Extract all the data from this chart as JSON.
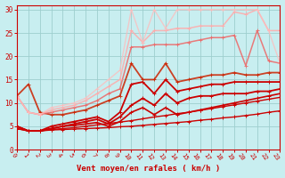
{
  "xlabel": "Vent moyen/en rafales ( km/h )",
  "xlim": [
    0,
    23
  ],
  "ylim": [
    0,
    31
  ],
  "yticks": [
    0,
    5,
    10,
    15,
    20,
    25,
    30
  ],
  "xticks": [
    0,
    1,
    2,
    3,
    4,
    5,
    6,
    7,
    8,
    9,
    10,
    11,
    12,
    13,
    14,
    15,
    16,
    17,
    18,
    19,
    20,
    21,
    22,
    23
  ],
  "bg_color": "#c8eef0",
  "grid_color": "#9ecece",
  "lines": [
    {
      "y": [
        4.5,
        4.0,
        4.0,
        4.2,
        4.3,
        4.4,
        4.5,
        4.6,
        4.7,
        4.9,
        5.0,
        5.2,
        5.4,
        5.6,
        5.8,
        6.0,
        6.3,
        6.5,
        6.8,
        7.0,
        7.3,
        7.6,
        8.0,
        8.3
      ],
      "color": "#cc0000",
      "lw": 1.0,
      "alpha": 1.0
    },
    {
      "y": [
        4.5,
        4.0,
        4.0,
        4.3,
        4.5,
        4.7,
        5.0,
        5.3,
        5.6,
        5.9,
        6.2,
        6.6,
        7.0,
        7.3,
        7.7,
        8.0,
        8.4,
        8.8,
        9.2,
        9.6,
        10.0,
        10.4,
        10.8,
        11.2
      ],
      "color": "#cc0000",
      "lw": 1.0,
      "alpha": 1.0
    },
    {
      "y": [
        5.0,
        4.0,
        4.0,
        4.5,
        5.0,
        5.2,
        5.5,
        5.8,
        5.0,
        6.0,
        8.0,
        9.0,
        7.5,
        9.0,
        7.5,
        8.0,
        8.5,
        9.0,
        9.5,
        10.0,
        10.5,
        11.0,
        11.5,
        12.0
      ],
      "color": "#cc0000",
      "lw": 1.2,
      "alpha": 1.0
    },
    {
      "y": [
        5.0,
        4.0,
        4.0,
        4.5,
        5.0,
        5.5,
        6.0,
        6.5,
        5.5,
        7.0,
        9.5,
        11.0,
        9.5,
        12.0,
        10.0,
        11.0,
        11.5,
        11.5,
        12.0,
        12.0,
        12.0,
        12.5,
        12.5,
        13.0
      ],
      "color": "#cc0000",
      "lw": 1.3,
      "alpha": 1.0
    },
    {
      "y": [
        5.0,
        4.0,
        4.0,
        5.0,
        5.5,
        6.0,
        6.5,
        7.0,
        6.0,
        8.0,
        14.0,
        14.5,
        12.0,
        15.0,
        12.5,
        13.0,
        13.5,
        14.0,
        14.0,
        14.5,
        14.5,
        14.5,
        14.5,
        14.5
      ],
      "color": "#cc0000",
      "lw": 1.3,
      "alpha": 1.0
    },
    {
      "y": [
        11.5,
        14.0,
        8.0,
        7.5,
        7.5,
        8.0,
        8.5,
        9.5,
        10.5,
        11.5,
        18.5,
        15.0,
        15.0,
        18.5,
        14.5,
        15.0,
        15.5,
        16.0,
        16.0,
        16.5,
        16.0,
        16.0,
        16.5,
        16.5
      ],
      "color": "#cc2200",
      "lw": 1.3,
      "alpha": 0.85
    },
    {
      "y": [
        11.5,
        8.0,
        7.5,
        8.0,
        8.5,
        9.0,
        9.5,
        10.5,
        12.0,
        13.0,
        22.0,
        22.0,
        22.5,
        22.5,
        22.5,
        23.0,
        23.5,
        24.0,
        24.0,
        24.5,
        18.0,
        25.5,
        19.0,
        18.5
      ],
      "color": "#ee6666",
      "lw": 1.1,
      "alpha": 0.85
    },
    {
      "y": [
        11.5,
        8.0,
        7.5,
        8.5,
        9.0,
        9.5,
        10.5,
        12.0,
        13.5,
        15.0,
        25.5,
        23.0,
        25.5,
        25.5,
        26.0,
        26.0,
        26.5,
        26.5,
        26.5,
        29.5,
        29.0,
        30.0,
        25.5,
        25.5
      ],
      "color": "#ffaaaa",
      "lw": 1.1,
      "alpha": 0.85
    },
    {
      "y": [
        11.5,
        8.0,
        7.5,
        9.0,
        9.5,
        10.0,
        11.0,
        13.0,
        15.0,
        17.0,
        30.0,
        23.0,
        30.0,
        26.0,
        30.0,
        30.0,
        30.0,
        30.0,
        30.0,
        30.0,
        30.0,
        30.0,
        25.5,
        18.5
      ],
      "color": "#ffbbbb",
      "lw": 1.0,
      "alpha": 0.75
    }
  ]
}
